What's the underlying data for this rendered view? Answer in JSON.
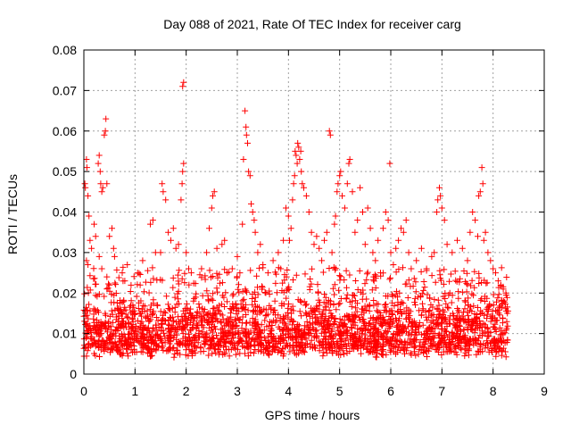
{
  "chart_data": {
    "type": "scatter",
    "title": "Day 088 of 2021, Rate Of TEC Index for receiver carg",
    "xlabel": "GPS time / hours",
    "ylabel": "ROTI / TECUs",
    "xlim": [
      0,
      9
    ],
    "ylim": [
      0,
      0.08
    ],
    "x_ticks": [
      0,
      1,
      2,
      3,
      4,
      5,
      6,
      7,
      8,
      9
    ],
    "x_tick_labels": [
      "0",
      "1",
      "2",
      "3",
      "4",
      "5",
      "6",
      "7",
      "8",
      "9"
    ],
    "y_ticks": [
      0,
      0.01,
      0.02,
      0.03,
      0.04,
      0.05,
      0.06,
      0.07,
      0.08
    ],
    "y_tick_labels": [
      "0",
      "0.01",
      "0.02",
      "0.03",
      "0.04",
      "0.05",
      "0.06",
      "0.07",
      "0.08"
    ],
    "grid": true,
    "marker": "+",
    "marker_color": "#ff0000",
    "series": [
      {
        "name": "ROTI",
        "points": [
          [
            0.02,
            0.047
          ],
          [
            0.03,
            0.046
          ],
          [
            0.05,
            0.053
          ],
          [
            0.06,
            0.051
          ],
          [
            0.08,
            0.044
          ],
          [
            0.1,
            0.039
          ],
          [
            0.12,
            0.033
          ],
          [
            0.05,
            0.028
          ],
          [
            0.08,
            0.027
          ],
          [
            0.15,
            0.031
          ],
          [
            0.2,
            0.037
          ],
          [
            0.23,
            0.034
          ],
          [
            0.28,
            0.052
          ],
          [
            0.3,
            0.054
          ],
          [
            0.32,
            0.05
          ],
          [
            0.33,
            0.047
          ],
          [
            0.35,
            0.045
          ],
          [
            0.37,
            0.046
          ],
          [
            0.4,
            0.059
          ],
          [
            0.42,
            0.06
          ],
          [
            0.43,
            0.063
          ],
          [
            0.45,
            0.047
          ],
          [
            0.5,
            0.034
          ],
          [
            0.55,
            0.036
          ],
          [
            0.58,
            0.031
          ],
          [
            0.6,
            0.029
          ],
          [
            0.3,
            0.029
          ],
          [
            0.35,
            0.026
          ],
          [
            0.45,
            0.024
          ],
          [
            0.5,
            0.022
          ],
          [
            0.75,
            0.025
          ],
          [
            0.8,
            0.023
          ],
          [
            0.85,
            0.027
          ],
          [
            1.05,
            0.025
          ],
          [
            1.1,
            0.022
          ],
          [
            1.15,
            0.028
          ],
          [
            1.3,
            0.037
          ],
          [
            1.35,
            0.038
          ],
          [
            1.4,
            0.03
          ],
          [
            1.5,
            0.03
          ],
          [
            1.53,
            0.047
          ],
          [
            1.55,
            0.045
          ],
          [
            1.6,
            0.043
          ],
          [
            1.65,
            0.035
          ],
          [
            1.7,
            0.033
          ],
          [
            1.75,
            0.036
          ],
          [
            1.8,
            0.031
          ],
          [
            1.85,
            0.032
          ],
          [
            1.9,
            0.043
          ],
          [
            1.92,
            0.047
          ],
          [
            1.93,
            0.05
          ],
          [
            1.95,
            0.052
          ],
          [
            1.93,
            0.071
          ],
          [
            1.95,
            0.072
          ],
          [
            2.0,
            0.03
          ],
          [
            2.05,
            0.026
          ],
          [
            2.1,
            0.025
          ],
          [
            2.3,
            0.026
          ],
          [
            2.4,
            0.03
          ],
          [
            2.45,
            0.036
          ],
          [
            2.5,
            0.041
          ],
          [
            2.52,
            0.044
          ],
          [
            2.55,
            0.045
          ],
          [
            2.6,
            0.031
          ],
          [
            2.7,
            0.032
          ],
          [
            2.75,
            0.033
          ],
          [
            2.8,
            0.025
          ],
          [
            2.9,
            0.026
          ],
          [
            3.0,
            0.029
          ],
          [
            3.05,
            0.025
          ],
          [
            3.1,
            0.037
          ],
          [
            3.12,
            0.053
          ],
          [
            3.15,
            0.065
          ],
          [
            3.17,
            0.061
          ],
          [
            3.18,
            0.059
          ],
          [
            3.2,
            0.057
          ],
          [
            3.22,
            0.05
          ],
          [
            3.25,
            0.049
          ],
          [
            3.27,
            0.042
          ],
          [
            3.3,
            0.04
          ],
          [
            3.33,
            0.038
          ],
          [
            3.35,
            0.035
          ],
          [
            3.4,
            0.03
          ],
          [
            3.45,
            0.032
          ],
          [
            3.5,
            0.027
          ],
          [
            3.6,
            0.025
          ],
          [
            3.7,
            0.028
          ],
          [
            3.8,
            0.03
          ],
          [
            3.85,
            0.026
          ],
          [
            3.9,
            0.033
          ],
          [
            3.95,
            0.041
          ],
          [
            4.0,
            0.039
          ],
          [
            4.02,
            0.033
          ],
          [
            4.05,
            0.036
          ],
          [
            4.08,
            0.043
          ],
          [
            4.1,
            0.047
          ],
          [
            4.12,
            0.049
          ],
          [
            4.13,
            0.055
          ],
          [
            4.15,
            0.054
          ],
          [
            4.17,
            0.052
          ],
          [
            4.18,
            0.057
          ],
          [
            4.2,
            0.056
          ],
          [
            4.22,
            0.053
          ],
          [
            4.24,
            0.055
          ],
          [
            4.25,
            0.05
          ],
          [
            4.27,
            0.047
          ],
          [
            4.3,
            0.046
          ],
          [
            4.35,
            0.044
          ],
          [
            4.4,
            0.04
          ],
          [
            4.45,
            0.035
          ],
          [
            4.5,
            0.032
          ],
          [
            4.55,
            0.034
          ],
          [
            4.6,
            0.031
          ],
          [
            4.65,
            0.028
          ],
          [
            4.7,
            0.033
          ],
          [
            4.75,
            0.035
          ],
          [
            4.8,
            0.06
          ],
          [
            4.82,
            0.059
          ],
          [
            4.85,
            0.03
          ],
          [
            4.9,
            0.037
          ],
          [
            4.92,
            0.039
          ],
          [
            4.95,
            0.045
          ],
          [
            4.97,
            0.047
          ],
          [
            5.0,
            0.049
          ],
          [
            5.02,
            0.05
          ],
          [
            5.05,
            0.044
          ],
          [
            5.1,
            0.041
          ],
          [
            5.15,
            0.047
          ],
          [
            5.18,
            0.052
          ],
          [
            5.2,
            0.053
          ],
          [
            5.25,
            0.045
          ],
          [
            5.3,
            0.035
          ],
          [
            5.35,
            0.038
          ],
          [
            5.4,
            0.046
          ],
          [
            5.45,
            0.04
          ],
          [
            5.5,
            0.032
          ],
          [
            5.55,
            0.041
          ],
          [
            5.6,
            0.036
          ],
          [
            5.65,
            0.03
          ],
          [
            5.7,
            0.028
          ],
          [
            5.75,
            0.033
          ],
          [
            5.8,
            0.025
          ],
          [
            5.85,
            0.036
          ],
          [
            5.9,
            0.04
          ],
          [
            5.95,
            0.038
          ],
          [
            5.98,
            0.052
          ],
          [
            6.0,
            0.03
          ],
          [
            6.05,
            0.027
          ],
          [
            6.1,
            0.031
          ],
          [
            6.15,
            0.033
          ],
          [
            6.2,
            0.036
          ],
          [
            6.25,
            0.035
          ],
          [
            6.3,
            0.038
          ],
          [
            6.35,
            0.03
          ],
          [
            6.4,
            0.026
          ],
          [
            6.5,
            0.028
          ],
          [
            6.6,
            0.031
          ],
          [
            6.7,
            0.026
          ],
          [
            6.8,
            0.029
          ],
          [
            6.85,
            0.03
          ],
          [
            6.9,
            0.04
          ],
          [
            6.92,
            0.043
          ],
          [
            6.95,
            0.046
          ],
          [
            6.97,
            0.044
          ],
          [
            7.0,
            0.041
          ],
          [
            7.05,
            0.038
          ],
          [
            7.1,
            0.032
          ],
          [
            7.2,
            0.03
          ],
          [
            7.3,
            0.033
          ],
          [
            7.4,
            0.031
          ],
          [
            7.5,
            0.028
          ],
          [
            7.55,
            0.035
          ],
          [
            7.6,
            0.04
          ],
          [
            7.65,
            0.038
          ],
          [
            7.7,
            0.034
          ],
          [
            7.72,
            0.044
          ],
          [
            7.75,
            0.045
          ],
          [
            7.78,
            0.051
          ],
          [
            7.8,
            0.047
          ],
          [
            7.82,
            0.033
          ],
          [
            7.85,
            0.035
          ],
          [
            7.9,
            0.03
          ],
          [
            7.95,
            0.028
          ],
          [
            8.0,
            0.026
          ],
          [
            8.05,
            0.025
          ],
          [
            8.1,
            0.023
          ],
          [
            8.15,
            0.022
          ],
          [
            8.2,
            0.021
          ],
          [
            8.25,
            0.02
          ],
          [
            8.28,
            0.015
          ]
        ]
      }
    ],
    "dense_band": {
      "description": "dense cluster of points across the full time range",
      "x_range": [
        0,
        8.3
      ],
      "y_typical": [
        0.004,
        0.025
      ],
      "y_median": 0.011
    }
  }
}
